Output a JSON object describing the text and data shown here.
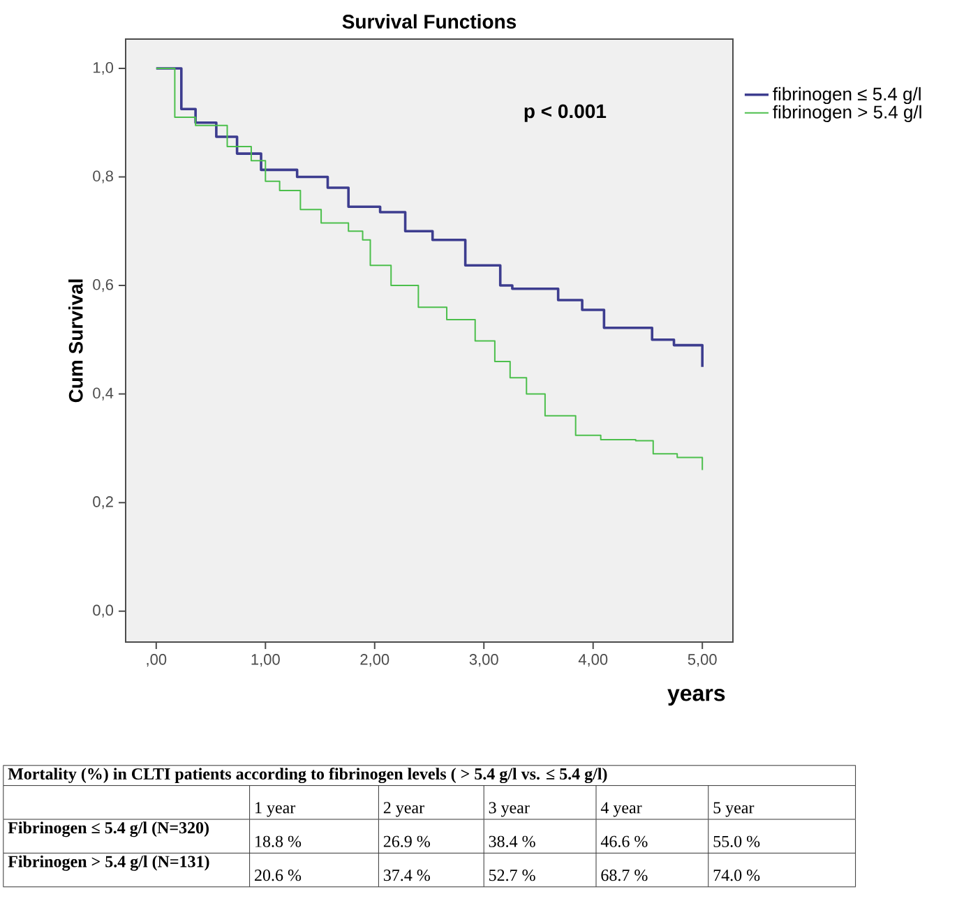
{
  "chart_data": {
    "type": "step",
    "title": "Survival Functions",
    "xlabel": "years",
    "ylabel": "Cum Survival",
    "xlim": [
      -0.28,
      5.28
    ],
    "ylim": [
      -0.057,
      1.054
    ],
    "xticks": [
      {
        "value": 0,
        "label": ",00"
      },
      {
        "value": 1,
        "label": "1,00"
      },
      {
        "value": 2,
        "label": "2,00"
      },
      {
        "value": 3,
        "label": "3,00"
      },
      {
        "value": 4,
        "label": "4,00"
      },
      {
        "value": 5,
        "label": "5,00"
      }
    ],
    "yticks": [
      {
        "value": 0,
        "label": "0,0"
      },
      {
        "value": 0.2,
        "label": "0,2"
      },
      {
        "value": 0.4,
        "label": "0,4"
      },
      {
        "value": 0.6,
        "label": "0,6"
      },
      {
        "value": 0.8,
        "label": "0,8"
      },
      {
        "value": 1.0,
        "label": "1,0"
      }
    ],
    "grid": false,
    "legend": "top right",
    "series": [
      {
        "name": "fibrinogen ≤ 5.4 g/l",
        "color": "#3d3d8f",
        "x": [
          0,
          0.23,
          0.36,
          0.55,
          0.74,
          0.96,
          1.29,
          1.57,
          1.76,
          2.05,
          2.28,
          2.53,
          2.83,
          3.15,
          3.26,
          3.68,
          3.9,
          4.1,
          4.54,
          4.74,
          5.0
        ],
        "values": [
          1.0,
          0.925,
          0.9,
          0.874,
          0.843,
          0.813,
          0.8,
          0.78,
          0.745,
          0.735,
          0.7,
          0.684,
          0.637,
          0.6,
          0.594,
          0.573,
          0.555,
          0.522,
          0.5,
          0.49,
          0.45
        ]
      },
      {
        "name": "fibrinogen > 5.4 g/l",
        "color": "#4cbf4c",
        "x": [
          0,
          0.17,
          0.36,
          0.65,
          0.87,
          1.0,
          1.13,
          1.32,
          1.51,
          1.76,
          1.89,
          1.96,
          2.15,
          2.4,
          2.66,
          2.92,
          3.1,
          3.24,
          3.39,
          3.56,
          3.84,
          4.07,
          4.39,
          4.55,
          4.77,
          5.0
        ],
        "values": [
          1.0,
          0.91,
          0.895,
          0.856,
          0.83,
          0.792,
          0.775,
          0.74,
          0.715,
          0.7,
          0.684,
          0.637,
          0.6,
          0.56,
          0.537,
          0.498,
          0.46,
          0.43,
          0.4,
          0.36,
          0.324,
          0.316,
          0.314,
          0.29,
          0.283,
          0.26
        ]
      }
    ],
    "annotations": [
      "p < 0.001",
      "Mortality (%) in CLTI patients according to fibrinogen levels ( > 5.4 g/l vs. ≤ 5.4 g/l)",
      "1 year",
      "2 year",
      "3 year",
      "4 year",
      "5 year",
      "Fibrinogen ≤ 5.4 g/l (N=320)",
      "18.8 %",
      "26.9 %",
      "38.4 %",
      "46.6 %",
      "55.0 %",
      "Fibrinogen > 5.4 g/l (N=131)",
      "20.6 %",
      "37.4 %",
      "52.7 %",
      "68.7 %",
      "74.0 %"
    ]
  }
}
